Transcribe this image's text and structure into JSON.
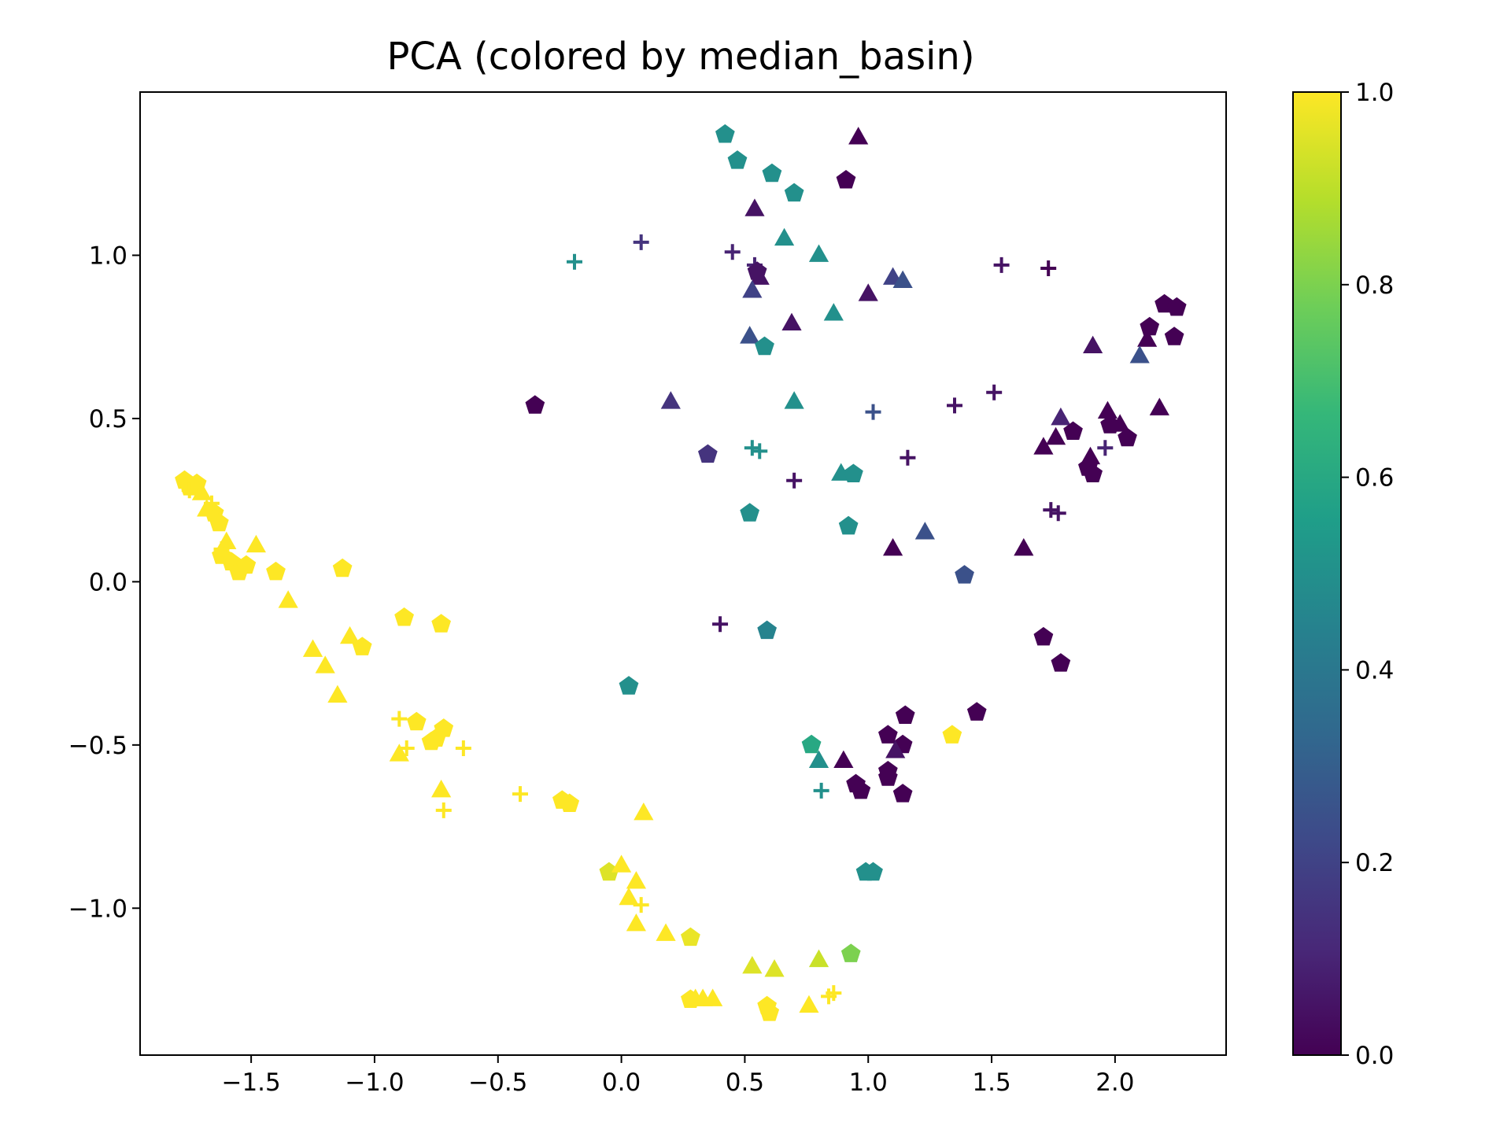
{
  "chart_data": {
    "type": "scatter",
    "title": "PCA (colored by median_basin)",
    "xlabel": "",
    "ylabel": "",
    "xlim": [
      -1.95,
      2.45
    ],
    "ylim": [
      -1.45,
      1.5
    ],
    "xticks": [
      -1.5,
      -1.0,
      -0.5,
      0.0,
      0.5,
      1.0,
      1.5,
      2.0
    ],
    "xtick_labels": [
      "−1.5",
      "−1.0",
      "−0.5",
      "0.0",
      "0.5",
      "1.0",
      "1.5",
      "2.0"
    ],
    "yticks": [
      -1.0,
      -0.5,
      0.0,
      0.5,
      1.0
    ],
    "ytick_labels": [
      "−1.0",
      "−0.5",
      "0.0",
      "0.5",
      "1.0"
    ],
    "colorbar": {
      "colormap": "viridis",
      "range": [
        0.0,
        1.0
      ],
      "ticks": [
        0.0,
        0.2,
        0.4,
        0.6,
        0.8,
        1.0
      ],
      "tick_labels": [
        "0.0",
        "0.2",
        "0.4",
        "0.6",
        "0.8",
        "1.0"
      ],
      "stops": [
        "#440154",
        "#482878",
        "#3e4989",
        "#31688e",
        "#26828e",
        "#1f9e89",
        "#35b779",
        "#6ece58",
        "#b5de2b",
        "#fde725"
      ]
    },
    "grid": false,
    "legend": "none",
    "marker_shapes": [
      "pentagon",
      "triangle",
      "plus"
    ],
    "points": [
      {
        "x": -1.77,
        "y": 0.31,
        "m": "p",
        "c": 1.0
      },
      {
        "x": -1.75,
        "y": 0.29,
        "m": "p",
        "c": 1.0
      },
      {
        "x": -1.72,
        "y": 0.3,
        "m": "p",
        "c": 1.0
      },
      {
        "x": -1.7,
        "y": 0.27,
        "m": "t",
        "c": 1.0
      },
      {
        "x": -1.68,
        "y": 0.22,
        "m": "t",
        "c": 1.0
      },
      {
        "x": -1.65,
        "y": 0.21,
        "m": "p",
        "c": 1.0
      },
      {
        "x": -1.63,
        "y": 0.18,
        "m": "p",
        "c": 1.0
      },
      {
        "x": -1.6,
        "y": 0.12,
        "m": "t",
        "c": 1.0
      },
      {
        "x": -1.62,
        "y": 0.08,
        "m": "p",
        "c": 1.0
      },
      {
        "x": -1.58,
        "y": 0.06,
        "m": "p",
        "c": 1.0
      },
      {
        "x": -1.55,
        "y": 0.03,
        "m": "p",
        "c": 1.0
      },
      {
        "x": -1.52,
        "y": 0.05,
        "m": "p",
        "c": 1.0
      },
      {
        "x": -1.48,
        "y": 0.11,
        "m": "t",
        "c": 1.0
      },
      {
        "x": -1.4,
        "y": 0.03,
        "m": "p",
        "c": 1.0
      },
      {
        "x": -1.75,
        "y": 0.28,
        "m": "c",
        "c": 1.0
      },
      {
        "x": -1.66,
        "y": 0.24,
        "m": "c",
        "c": 1.0
      },
      {
        "x": -1.62,
        "y": 0.1,
        "m": "c",
        "c": 1.0
      },
      {
        "x": -1.13,
        "y": 0.04,
        "m": "p",
        "c": 1.0
      },
      {
        "x": -1.35,
        "y": -0.06,
        "m": "t",
        "c": 1.0
      },
      {
        "x": -0.88,
        "y": -0.11,
        "m": "p",
        "c": 1.0
      },
      {
        "x": -0.73,
        "y": -0.13,
        "m": "p",
        "c": 1.0
      },
      {
        "x": -1.25,
        "y": -0.21,
        "m": "t",
        "c": 1.0
      },
      {
        "x": -1.1,
        "y": -0.17,
        "m": "t",
        "c": 1.0
      },
      {
        "x": -1.05,
        "y": -0.2,
        "m": "p",
        "c": 1.0
      },
      {
        "x": -1.2,
        "y": -0.26,
        "m": "t",
        "c": 1.0
      },
      {
        "x": -1.15,
        "y": -0.35,
        "m": "t",
        "c": 1.0
      },
      {
        "x": -0.9,
        "y": -0.42,
        "m": "c",
        "c": 1.0
      },
      {
        "x": -0.83,
        "y": -0.43,
        "m": "p",
        "c": 1.0
      },
      {
        "x": -0.72,
        "y": -0.45,
        "m": "p",
        "c": 1.0
      },
      {
        "x": -0.75,
        "y": -0.48,
        "m": "p",
        "c": 1.0
      },
      {
        "x": -0.77,
        "y": -0.49,
        "m": "p",
        "c": 1.0
      },
      {
        "x": -0.9,
        "y": -0.53,
        "m": "t",
        "c": 1.0
      },
      {
        "x": -0.87,
        "y": -0.51,
        "m": "c",
        "c": 1.0
      },
      {
        "x": -0.64,
        "y": -0.51,
        "m": "c",
        "c": 1.0
      },
      {
        "x": -0.73,
        "y": -0.64,
        "m": "t",
        "c": 1.0
      },
      {
        "x": -0.72,
        "y": -0.7,
        "m": "c",
        "c": 1.0
      },
      {
        "x": -0.41,
        "y": -0.65,
        "m": "c",
        "c": 1.0
      },
      {
        "x": -0.24,
        "y": -0.67,
        "m": "p",
        "c": 1.0
      },
      {
        "x": -0.21,
        "y": -0.68,
        "m": "p",
        "c": 1.0
      },
      {
        "x": 0.09,
        "y": -0.71,
        "m": "t",
        "c": 1.0
      },
      {
        "x": -0.05,
        "y": -0.89,
        "m": "p",
        "c": 0.95
      },
      {
        "x": 0.0,
        "y": -0.87,
        "m": "t",
        "c": 1.0
      },
      {
        "x": 0.06,
        "y": -0.92,
        "m": "t",
        "c": 1.0
      },
      {
        "x": 0.03,
        "y": -0.97,
        "m": "t",
        "c": 1.0
      },
      {
        "x": 0.08,
        "y": -0.99,
        "m": "c",
        "c": 1.0
      },
      {
        "x": 0.06,
        "y": -1.05,
        "m": "t",
        "c": 1.0
      },
      {
        "x": 0.18,
        "y": -1.08,
        "m": "t",
        "c": 1.0
      },
      {
        "x": 0.28,
        "y": -1.09,
        "m": "p",
        "c": 0.97
      },
      {
        "x": 0.28,
        "y": -1.28,
        "m": "p",
        "c": 1.0
      },
      {
        "x": 0.3,
        "y": -1.28,
        "m": "t",
        "c": 1.0
      },
      {
        "x": 0.33,
        "y": -1.28,
        "m": "t",
        "c": 1.0
      },
      {
        "x": 0.37,
        "y": -1.28,
        "m": "t",
        "c": 1.0
      },
      {
        "x": 0.53,
        "y": -1.18,
        "m": "t",
        "c": 0.95
      },
      {
        "x": 0.62,
        "y": -1.19,
        "m": "t",
        "c": 0.95
      },
      {
        "x": 0.59,
        "y": -1.3,
        "m": "p",
        "c": 1.0
      },
      {
        "x": 0.6,
        "y": -1.32,
        "m": "p",
        "c": 1.0
      },
      {
        "x": 0.76,
        "y": -1.3,
        "m": "t",
        "c": 1.0
      },
      {
        "x": 0.8,
        "y": -1.16,
        "m": "t",
        "c": 0.92
      },
      {
        "x": 0.84,
        "y": -1.27,
        "m": "c",
        "c": 1.0
      },
      {
        "x": 0.86,
        "y": -1.26,
        "m": "c",
        "c": 1.0
      },
      {
        "x": 0.93,
        "y": -1.14,
        "m": "p",
        "c": 0.8
      },
      {
        "x": 1.34,
        "y": -0.47,
        "m": "p",
        "c": 1.0
      },
      {
        "x": 0.42,
        "y": 1.37,
        "m": "p",
        "c": 0.5
      },
      {
        "x": 0.47,
        "y": 1.29,
        "m": "p",
        "c": 0.5
      },
      {
        "x": 0.61,
        "y": 1.25,
        "m": "p",
        "c": 0.5
      },
      {
        "x": 0.7,
        "y": 1.19,
        "m": "p",
        "c": 0.5
      },
      {
        "x": 0.96,
        "y": 1.36,
        "m": "t",
        "c": 0.0
      },
      {
        "x": 0.91,
        "y": 1.23,
        "m": "p",
        "c": 0.0
      },
      {
        "x": 0.54,
        "y": 1.14,
        "m": "t",
        "c": 0.05
      },
      {
        "x": 0.66,
        "y": 1.05,
        "m": "t",
        "c": 0.5
      },
      {
        "x": 0.8,
        "y": 1.0,
        "m": "t",
        "c": 0.5
      },
      {
        "x": -0.19,
        "y": 0.98,
        "m": "c",
        "c": 0.5
      },
      {
        "x": 0.08,
        "y": 1.04,
        "m": "c",
        "c": 0.15
      },
      {
        "x": 0.45,
        "y": 1.01,
        "m": "c",
        "c": 0.1
      },
      {
        "x": 0.54,
        "y": 0.97,
        "m": "c",
        "c": 0.1
      },
      {
        "x": 0.55,
        "y": 0.95,
        "m": "p",
        "c": 0.05
      },
      {
        "x": 0.56,
        "y": 0.93,
        "m": "t",
        "c": 0.05
      },
      {
        "x": 0.53,
        "y": 0.89,
        "m": "t",
        "c": 0.2
      },
      {
        "x": 1.0,
        "y": 0.88,
        "m": "t",
        "c": 0.05
      },
      {
        "x": 1.1,
        "y": 0.93,
        "m": "t",
        "c": 0.2
      },
      {
        "x": 1.14,
        "y": 0.92,
        "m": "t",
        "c": 0.25
      },
      {
        "x": 1.54,
        "y": 0.97,
        "m": "c",
        "c": 0.05
      },
      {
        "x": 1.73,
        "y": 0.96,
        "m": "c",
        "c": 0.0
      },
      {
        "x": 0.86,
        "y": 0.82,
        "m": "t",
        "c": 0.5
      },
      {
        "x": 0.69,
        "y": 0.79,
        "m": "t",
        "c": 0.05
      },
      {
        "x": 0.52,
        "y": 0.75,
        "m": "t",
        "c": 0.25
      },
      {
        "x": 0.58,
        "y": 0.72,
        "m": "p",
        "c": 0.5
      },
      {
        "x": 2.2,
        "y": 0.85,
        "m": "p",
        "c": 0.0
      },
      {
        "x": 2.25,
        "y": 0.84,
        "m": "p",
        "c": 0.0
      },
      {
        "x": 2.14,
        "y": 0.78,
        "m": "p",
        "c": 0.0
      },
      {
        "x": 2.13,
        "y": 0.74,
        "m": "t",
        "c": 0.0
      },
      {
        "x": 2.24,
        "y": 0.75,
        "m": "p",
        "c": 0.0
      },
      {
        "x": 1.91,
        "y": 0.72,
        "m": "t",
        "c": 0.05
      },
      {
        "x": 2.1,
        "y": 0.69,
        "m": "t",
        "c": 0.25
      },
      {
        "x": -0.35,
        "y": 0.54,
        "m": "p",
        "c": 0.0
      },
      {
        "x": 0.2,
        "y": 0.55,
        "m": "t",
        "c": 0.15
      },
      {
        "x": 0.7,
        "y": 0.55,
        "m": "t",
        "c": 0.5
      },
      {
        "x": 1.02,
        "y": 0.52,
        "m": "c",
        "c": 0.25
      },
      {
        "x": 1.35,
        "y": 0.54,
        "m": "c",
        "c": 0.05
      },
      {
        "x": 1.51,
        "y": 0.58,
        "m": "c",
        "c": 0.05
      },
      {
        "x": 2.18,
        "y": 0.53,
        "m": "t",
        "c": 0.0
      },
      {
        "x": 1.78,
        "y": 0.5,
        "m": "t",
        "c": 0.1
      },
      {
        "x": 1.83,
        "y": 0.46,
        "m": "p",
        "c": 0.0
      },
      {
        "x": 1.97,
        "y": 0.52,
        "m": "t",
        "c": 0.0
      },
      {
        "x": 1.98,
        "y": 0.48,
        "m": "p",
        "c": 0.0
      },
      {
        "x": 2.02,
        "y": 0.48,
        "m": "t",
        "c": 0.0
      },
      {
        "x": 2.05,
        "y": 0.44,
        "m": "p",
        "c": 0.0
      },
      {
        "x": 1.76,
        "y": 0.44,
        "m": "t",
        "c": 0.0
      },
      {
        "x": 1.71,
        "y": 0.41,
        "m": "t",
        "c": 0.0
      },
      {
        "x": 1.96,
        "y": 0.41,
        "m": "c",
        "c": 0.1
      },
      {
        "x": 0.35,
        "y": 0.39,
        "m": "p",
        "c": 0.15
      },
      {
        "x": 0.53,
        "y": 0.41,
        "m": "c",
        "c": 0.5
      },
      {
        "x": 0.56,
        "y": 0.4,
        "m": "c",
        "c": 0.5
      },
      {
        "x": 1.16,
        "y": 0.38,
        "m": "c",
        "c": 0.05
      },
      {
        "x": 1.9,
        "y": 0.38,
        "m": "t",
        "c": 0.0
      },
      {
        "x": 1.89,
        "y": 0.35,
        "m": "p",
        "c": 0.0
      },
      {
        "x": 1.91,
        "y": 0.33,
        "m": "p",
        "c": 0.0
      },
      {
        "x": 0.7,
        "y": 0.31,
        "m": "c",
        "c": 0.05
      },
      {
        "x": 0.89,
        "y": 0.33,
        "m": "t",
        "c": 0.5
      },
      {
        "x": 0.94,
        "y": 0.33,
        "m": "p",
        "c": 0.5
      },
      {
        "x": 1.74,
        "y": 0.22,
        "m": "c",
        "c": 0.05
      },
      {
        "x": 1.77,
        "y": 0.21,
        "m": "c",
        "c": 0.05
      },
      {
        "x": 0.52,
        "y": 0.21,
        "m": "p",
        "c": 0.5
      },
      {
        "x": 0.92,
        "y": 0.17,
        "m": "p",
        "c": 0.5
      },
      {
        "x": 1.23,
        "y": 0.15,
        "m": "t",
        "c": 0.25
      },
      {
        "x": 1.1,
        "y": 0.1,
        "m": "t",
        "c": 0.0
      },
      {
        "x": 1.63,
        "y": 0.1,
        "m": "t",
        "c": 0.0
      },
      {
        "x": 1.39,
        "y": 0.02,
        "m": "p",
        "c": 0.25
      },
      {
        "x": 0.4,
        "y": -0.13,
        "m": "c",
        "c": 0.05
      },
      {
        "x": 0.59,
        "y": -0.15,
        "m": "p",
        "c": 0.45
      },
      {
        "x": 1.71,
        "y": -0.17,
        "m": "p",
        "c": 0.0
      },
      {
        "x": 1.78,
        "y": -0.25,
        "m": "p",
        "c": 0.0
      },
      {
        "x": 0.03,
        "y": -0.32,
        "m": "p",
        "c": 0.5
      },
      {
        "x": 1.15,
        "y": -0.41,
        "m": "p",
        "c": 0.0
      },
      {
        "x": 1.44,
        "y": -0.4,
        "m": "p",
        "c": 0.0
      },
      {
        "x": 1.08,
        "y": -0.47,
        "m": "p",
        "c": 0.0
      },
      {
        "x": 1.14,
        "y": -0.5,
        "m": "p",
        "c": 0.0
      },
      {
        "x": 1.11,
        "y": -0.52,
        "m": "t",
        "c": 0.05
      },
      {
        "x": 0.77,
        "y": -0.5,
        "m": "p",
        "c": 0.6
      },
      {
        "x": 0.8,
        "y": -0.55,
        "m": "t",
        "c": 0.5
      },
      {
        "x": 0.9,
        "y": -0.55,
        "m": "t",
        "c": 0.0
      },
      {
        "x": 1.08,
        "y": -0.58,
        "m": "p",
        "c": 0.0
      },
      {
        "x": 1.08,
        "y": -0.6,
        "m": "p",
        "c": 0.0
      },
      {
        "x": 0.95,
        "y": -0.62,
        "m": "p",
        "c": 0.0
      },
      {
        "x": 0.97,
        "y": -0.64,
        "m": "p",
        "c": 0.0
      },
      {
        "x": 1.14,
        "y": -0.65,
        "m": "p",
        "c": 0.0
      },
      {
        "x": 0.81,
        "y": -0.64,
        "m": "c",
        "c": 0.5
      },
      {
        "x": 0.99,
        "y": -0.89,
        "m": "p",
        "c": 0.5
      },
      {
        "x": 1.02,
        "y": -0.89,
        "m": "p",
        "c": 0.5
      }
    ]
  }
}
